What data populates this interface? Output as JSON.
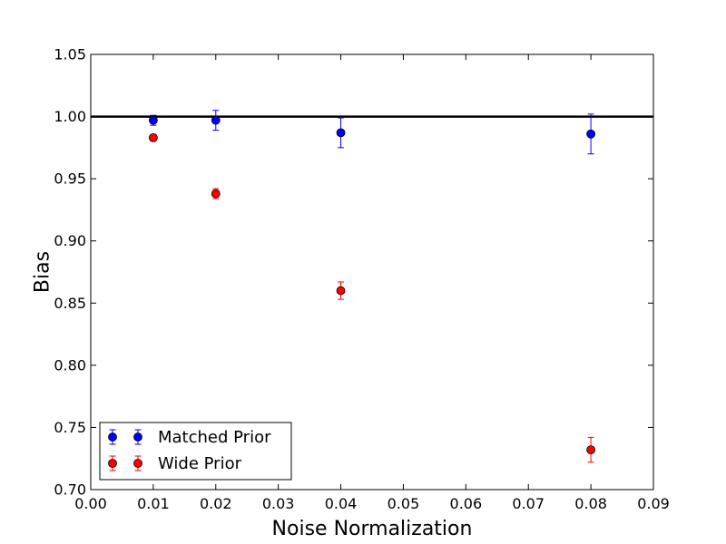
{
  "chart_data": {
    "type": "scatter",
    "title": "",
    "xlabel": "Noise Normalization",
    "ylabel": "Bias",
    "xlim": [
      0.0,
      0.09
    ],
    "ylim": [
      0.7,
      1.05
    ],
    "xticks": [
      "0.00",
      "0.01",
      "0.02",
      "0.03",
      "0.04",
      "0.05",
      "0.06",
      "0.07",
      "0.08",
      "0.09"
    ],
    "yticks": [
      "0.70",
      "0.75",
      "0.80",
      "0.85",
      "0.90",
      "0.95",
      "1.00",
      "1.05"
    ],
    "grid": false,
    "legend_position": "lower-left",
    "reference_line": {
      "y": 1.0,
      "color": "#000000"
    },
    "series": [
      {
        "name": "Matched Prior",
        "color": "#0000ff",
        "x": [
          0.01,
          0.02,
          0.04,
          0.08
        ],
        "y": [
          0.997,
          0.997,
          0.987,
          0.986
        ],
        "yerr": [
          0.004,
          0.008,
          0.012,
          0.016
        ]
      },
      {
        "name": "Wide Prior",
        "color": "#ff0000",
        "x": [
          0.01,
          0.02,
          0.04,
          0.08
        ],
        "y": [
          0.983,
          0.938,
          0.86,
          0.732
        ],
        "yerr": [
          0.002,
          0.004,
          0.007,
          0.01
        ]
      }
    ]
  }
}
